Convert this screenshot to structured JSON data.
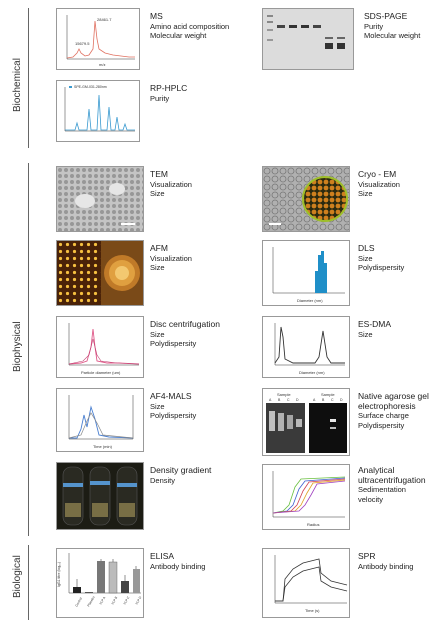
{
  "sections": {
    "biochemical": "Biochemical",
    "biophysical": "Biophysical",
    "biological": "Biological"
  },
  "panels": {
    "ms": {
      "title": "MS",
      "lines": [
        "Amino acid composition",
        "Molecular weight"
      ],
      "peak1": "15679.5",
      "peak2": "28461.7",
      "xlabel": "m/z"
    },
    "sds": {
      "title": "SDS-PAGE",
      "lines": [
        "Purity",
        "Molecular weight"
      ]
    },
    "rphplc": {
      "title": "RP-HPLC",
      "lines": [
        "Purity"
      ],
      "legend": "SPE-GM-031-280nm"
    },
    "tem": {
      "title": "TEM",
      "lines": [
        "Visualization",
        "Size"
      ]
    },
    "cryoem": {
      "title": "Cryo - EM",
      "lines": [
        "Visualization",
        "Size"
      ]
    },
    "afm": {
      "title": "AFM",
      "lines": [
        "Visualization",
        "Size"
      ]
    },
    "dls": {
      "title": "DLS",
      "lines": [
        "Size",
        "Polydispersity"
      ],
      "xlabel": "Diameter (nm)"
    },
    "disc": {
      "title": "Disc centrifugation",
      "lines": [
        "Size",
        "Polydispersity"
      ],
      "xlabel": "Particle diameter (um)"
    },
    "esdma": {
      "title": "ES-DMA",
      "lines": [
        "Size"
      ],
      "xlabel": "Diameter (nm)"
    },
    "af4": {
      "title": "AF4-MALS",
      "lines": [
        "Size",
        "Polydispersity"
      ],
      "xlabel": "Time (min)"
    },
    "agarose": {
      "title": "Native agarose gel",
      "title2": "electrophoresis",
      "lines": [
        "Surface charge",
        "Polydispersity"
      ],
      "lane_header": "Sample",
      "lanes": [
        "A",
        "B",
        "C",
        "D"
      ]
    },
    "density": {
      "title": "Density gradient",
      "lines": [
        "Density"
      ]
    },
    "auc": {
      "title": "Analytical",
      "title2": "ultracentrifugation",
      "lines": [
        "Sedimentation",
        "velocity"
      ],
      "xlabel": "Radius"
    },
    "elisa": {
      "title": "ELISA",
      "lines": [
        "Antibody binding"
      ],
      "ylabel": "IgG1 titre (log₁₀)",
      "categories": [
        "Control",
        "Placebo",
        "VLP A",
        "VLP B",
        "VLP C",
        "VLP D"
      ]
    },
    "spr": {
      "title": "SPR",
      "lines": [
        "Antibody binding"
      ],
      "xlabel": "Time (s)"
    }
  },
  "colors": {
    "ms": "#e07060",
    "hplc": "#3a9ad0",
    "dls": "#1f8fc8",
    "disc": "#e05a8a",
    "af4_blue": "#4a7fd0",
    "af4_grey": "#888888"
  }
}
